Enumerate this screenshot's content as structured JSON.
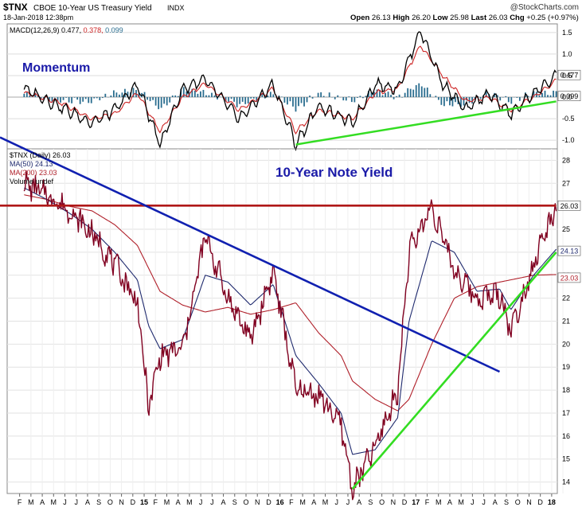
{
  "header": {
    "symbol": "$TNX",
    "name": "CBOE 10-Year US Treasury Yield",
    "exchange": "INDX",
    "date": "18-Jan-2018 12:38pm",
    "watermark": "@StockCharts.com",
    "ohlc": {
      "open_label": "Open",
      "open": "26.13",
      "high_label": "High",
      "high": "26.20",
      "low_label": "Low",
      "low": "25.98",
      "last_label": "Last",
      "last": "26.03",
      "chg_label": "Chg",
      "chg": "+0.25 (+0.97%)"
    }
  },
  "macd_panel": {
    "legend_name": "MACD(12,26,9)",
    "legend_v1": "0.477,",
    "legend_v2": "0.378,",
    "legend_v3": "0.099",
    "annotation": "Momentum",
    "ticks": [
      "1.5",
      "1.0",
      "0.5",
      "0.0",
      "-0.5",
      "-1.0"
    ],
    "badge_macd": "0.477",
    "badge_hist": "0.099"
  },
  "price_panel": {
    "legend_price": "$TNX (Daily) 26.03",
    "legend_ma50": "MA(50) 24.13",
    "legend_ma200": "MA(200) 23.03",
    "legend_vol": "Volume undef",
    "annotation": "10-Year Note Yield",
    "ticks": [
      "28",
      "27",
      "26",
      "25",
      "24",
      "23",
      "22",
      "21",
      "20",
      "19",
      "18",
      "17",
      "16",
      "15",
      "14"
    ],
    "badge_last": "26.03",
    "badge_ma50": "24.13",
    "badge_ma200": "23.03"
  },
  "x_axis": [
    "F",
    "M",
    "A",
    "M",
    "J",
    "J",
    "A",
    "S",
    "O",
    "N",
    "D",
    "15",
    "F",
    "M",
    "A",
    "M",
    "J",
    "J",
    "A",
    "S",
    "O",
    "N",
    "D",
    "16",
    "F",
    "M",
    "A",
    "M",
    "J",
    "J",
    "A",
    "S",
    "O",
    "N",
    "D",
    "17",
    "F",
    "M",
    "A",
    "M",
    "J",
    "J",
    "A",
    "S",
    "O",
    "N",
    "D",
    "18"
  ],
  "colors": {
    "price": "#800020",
    "ma50": "#1f2a6e",
    "ma200": "#b0202a",
    "macd": "#000000",
    "signal": "#cc2222",
    "histogram": "#2a6d8f",
    "resistance": "#b01818",
    "downtrend": "#1020b0",
    "uptrend": "#33dd22",
    "annotation": "#1a1aa8"
  },
  "chart_data": [
    {
      "type": "line",
      "title": "10-Year Note Yield",
      "x": [
        "2014-02",
        "2014-04",
        "2014-06",
        "2014-08",
        "2014-10",
        "2014-12",
        "2015-01",
        "2015-02",
        "2015-04",
        "2015-06",
        "2015-08",
        "2015-10",
        "2015-12",
        "2016-02",
        "2016-04",
        "2016-06",
        "2016-07",
        "2016-09",
        "2016-11",
        "2016-12",
        "2017-02",
        "2017-04",
        "2017-06",
        "2017-08",
        "2017-09",
        "2017-11",
        "2018-01"
      ],
      "series": [
        {
          "name": "$TNX (Daily)",
          "values": [
            27.0,
            26.5,
            25.8,
            24.8,
            23.5,
            21.8,
            17.2,
            19.5,
            19.8,
            24.7,
            22.0,
            20.2,
            23.2,
            18.0,
            17.8,
            16.5,
            13.7,
            15.5,
            18.0,
            24.0,
            26.0,
            23.2,
            22.0,
            22.2,
            20.6,
            23.5,
            26.03
          ]
        },
        {
          "name": "MA(50)",
          "values": [
            26.8,
            26.3,
            25.7,
            25.0,
            24.0,
            22.8,
            20.8,
            19.8,
            20.2,
            23.0,
            22.7,
            21.7,
            22.6,
            19.5,
            18.3,
            17.0,
            15.2,
            15.4,
            16.8,
            21.0,
            24.5,
            24.0,
            22.3,
            22.4,
            21.5,
            23.0,
            24.13
          ]
        },
        {
          "name": "MA(200)",
          "values": [
            26.5,
            26.3,
            26.0,
            25.8,
            25.2,
            24.3,
            23.3,
            22.3,
            21.7,
            21.4,
            21.6,
            21.3,
            21.5,
            21.8,
            20.5,
            19.5,
            18.4,
            17.6,
            17.1,
            17.6,
            20.0,
            22.0,
            22.5,
            22.7,
            22.8,
            23.0,
            23.03
          ]
        }
      ],
      "ylim": [
        13.5,
        28.5
      ],
      "trendlines": [
        {
          "name": "resistance",
          "from": [
            "2014-01",
            26.03
          ],
          "to": [
            "2018-01",
            26.03
          ]
        },
        {
          "name": "downtrend",
          "from": [
            "2014-01",
            29.0
          ],
          "to": [
            "2017-08",
            18.8
          ]
        },
        {
          "name": "uptrend",
          "from": [
            "2016-07",
            13.7
          ],
          "to": [
            "2018-01",
            24.0
          ]
        }
      ]
    },
    {
      "type": "line",
      "title": "Momentum",
      "x": [
        "2014-02",
        "2014-05",
        "2014-08",
        "2014-10",
        "2014-12",
        "2015-02",
        "2015-04",
        "2015-06",
        "2015-09",
        "2015-12",
        "2016-02",
        "2016-04",
        "2016-07",
        "2016-09",
        "2016-11",
        "2017-01",
        "2017-03",
        "2017-05",
        "2017-07",
        "2017-09",
        "2017-11",
        "2018-01"
      ],
      "series": [
        {
          "name": "MACD(12,26,9)",
          "values": [
            0.2,
            -0.2,
            -0.6,
            -0.3,
            0.3,
            -1.1,
            0.2,
            0.4,
            -0.5,
            0.3,
            -1.1,
            -0.2,
            -0.6,
            0.3,
            0.2,
            1.55,
            0.3,
            -0.3,
            0.1,
            -0.4,
            0.1,
            0.477
          ]
        },
        {
          "name": "signal",
          "values": [
            0.1,
            -0.1,
            -0.5,
            -0.4,
            0.1,
            -0.8,
            0.0,
            0.3,
            -0.3,
            0.2,
            -0.8,
            -0.3,
            -0.5,
            0.1,
            0.2,
            1.2,
            0.5,
            -0.1,
            0.0,
            -0.3,
            0.0,
            0.378
          ]
        }
      ],
      "ylim": [
        -1.2,
        1.7
      ],
      "trendlines": [
        {
          "name": "macd-support",
          "from": [
            "2016-02",
            -1.1
          ],
          "to": [
            "2018-01",
            -0.1
          ]
        }
      ]
    }
  ]
}
